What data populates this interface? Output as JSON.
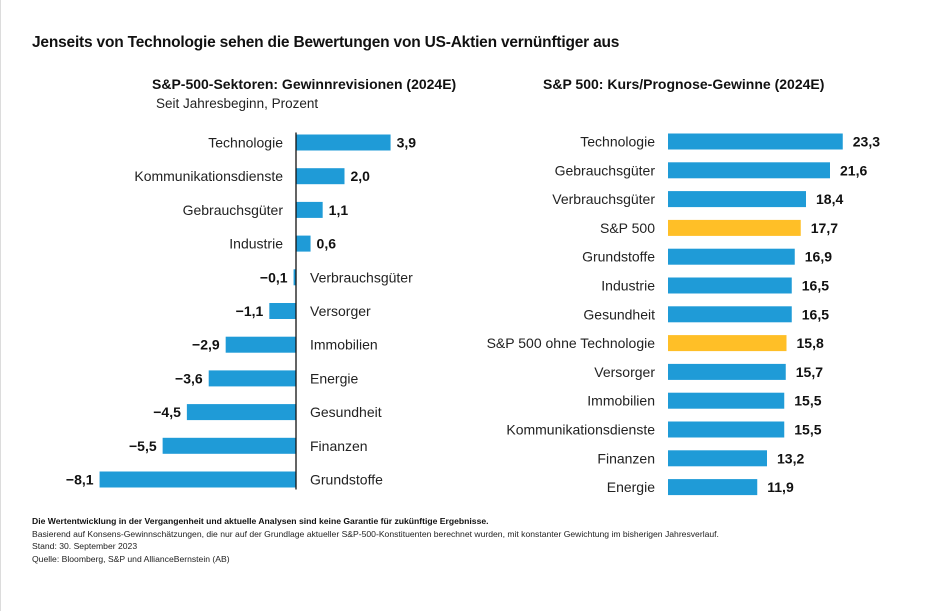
{
  "title": "Jenseits von Technologie sehen die Bewertungen von US-Aktien vernünftiger aus",
  "colors": {
    "bar_blue": "#1F9BD7",
    "bar_yellow": "#FFBF27",
    "text": "#111111"
  },
  "chart_data": [
    {
      "type": "bar",
      "orientation": "horizontal",
      "title": "S&P-500-Sektoren: Gewinnrevisionen (2024E)",
      "subtitle": "Seit Jahresbeginn, Prozent",
      "xlabel": "",
      "ylabel": "",
      "xlim": [
        -8.1,
        3.9
      ],
      "grid": false,
      "legend": "none",
      "categories": [
        "Technologie",
        "Kommunikationsdienste",
        "Gebrauchsgüter",
        "Industrie",
        "Verbrauchsgüter",
        "Versorger",
        "Immobilien",
        "Energie",
        "Gesundheit",
        "Finanzen",
        "Grundstoffe"
      ],
      "values": [
        3.9,
        2.0,
        1.1,
        0.6,
        -0.1,
        -1.1,
        -2.9,
        -3.6,
        -4.5,
        -5.5,
        -8.1
      ],
      "value_labels": [
        "3,9",
        "2,0",
        "1,1",
        "0,6",
        "−0,1",
        "−1,1",
        "−2,9",
        "−3,6",
        "−4,5",
        "−5,5",
        "−8,1"
      ],
      "highlight": []
    },
    {
      "type": "bar",
      "orientation": "horizontal",
      "title": "S&P 500: Kurs/Prognose-Gewinne (2024E)",
      "subtitle": "",
      "xlabel": "",
      "ylabel": "",
      "xlim": [
        0,
        23.3
      ],
      "grid": false,
      "legend": "none",
      "categories": [
        "Technologie",
        "Gebrauchsgüter",
        "Verbrauchsgüter",
        "S&P 500",
        "Grundstoffe",
        "Industrie",
        "Gesundheit",
        "S&P 500 ohne Technologie",
        "Versorger",
        "Immobilien",
        "Kommunikationsdienste",
        "Finanzen",
        "Energie"
      ],
      "values": [
        23.3,
        21.6,
        18.4,
        17.7,
        16.9,
        16.5,
        16.5,
        15.8,
        15.7,
        15.5,
        15.5,
        13.2,
        11.9
      ],
      "value_labels": [
        "23,3",
        "21,6",
        "18,4",
        "17,7",
        "16,9",
        "16,5",
        "16,5",
        "15,8",
        "15,7",
        "15,5",
        "15,5",
        "13,2",
        "11,9"
      ],
      "highlight": [
        "S&P 500",
        "S&P 500 ohne Technologie"
      ]
    }
  ],
  "footnotes": {
    "disclaimer": "Die Wertentwicklung in der Vergangenheit und aktuelle Analysen sind keine Garantie für zukünftige Ergebnisse.",
    "basis": "Basierend auf Konsens-Gewinnschätzungen, die nur auf der Grundlage aktueller S&P-500-Konstituenten berechnet wurden, mit konstanter Gewichtung im bisherigen Jahresverlauf.",
    "date": "Stand: 30. September 2023",
    "source": "Quelle: Bloomberg, S&P und AllianceBernstein (AB)"
  }
}
